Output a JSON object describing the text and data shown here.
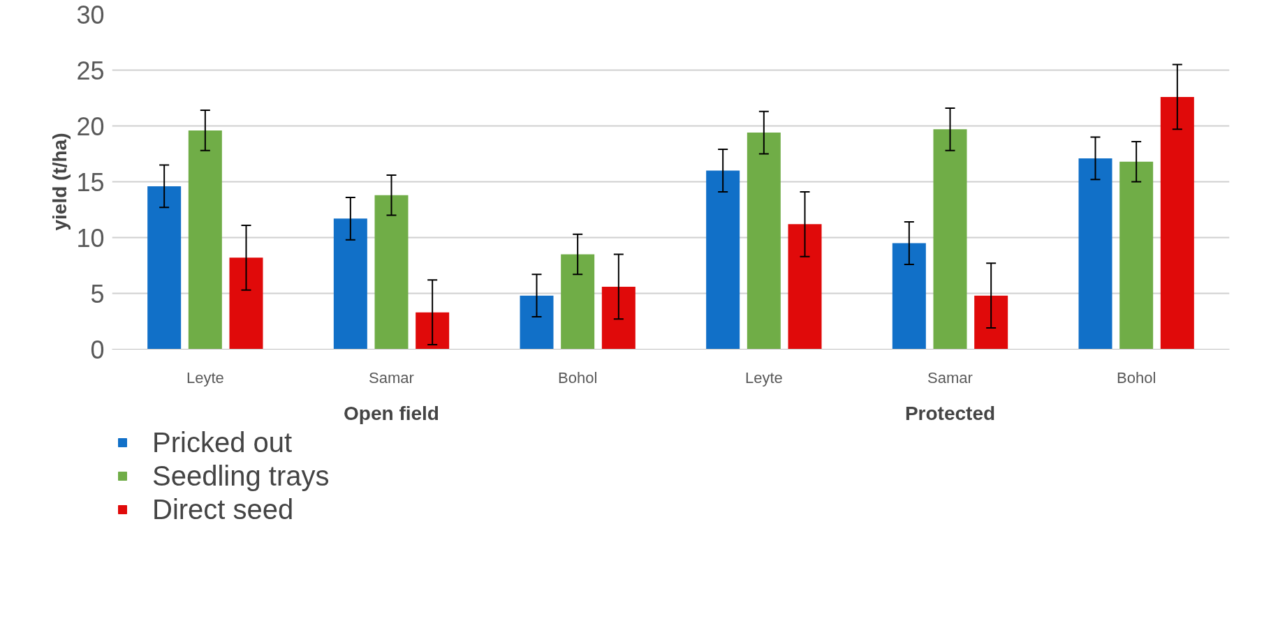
{
  "chart_data": {
    "type": "bar",
    "ylabel": "yield (t/ha)",
    "categories": [
      "Leyte",
      "Samar",
      "Bohol",
      "Leyte",
      "Samar",
      "Bohol"
    ],
    "annotations": [
      "Open field",
      "Protected"
    ],
    "series": [
      {
        "name": "Pricked out",
        "color": "#1170c8",
        "values": [
          14.6,
          11.7,
          4.8,
          16.0,
          9.5,
          17.1
        ],
        "errors": [
          1.9,
          1.9,
          1.9,
          1.9,
          1.9,
          1.9
        ]
      },
      {
        "name": "Seedling trays",
        "color": "#70ad47",
        "values": [
          19.6,
          13.8,
          8.5,
          19.4,
          19.7,
          16.8
        ],
        "errors": [
          1.8,
          1.8,
          1.8,
          1.9,
          1.9,
          1.8
        ]
      },
      {
        "name": "Direct seed",
        "color": "#e00a0a",
        "values": [
          8.2,
          3.3,
          5.6,
          11.2,
          4.8,
          22.6
        ],
        "errors": [
          2.9,
          2.9,
          2.9,
          2.9,
          2.9,
          2.9
        ]
      }
    ],
    "ylim": [
      0,
      30
    ],
    "yticks": [
      0,
      5,
      10,
      15,
      20,
      25,
      30
    ],
    "grid": "y",
    "legend": "bottom left"
  }
}
